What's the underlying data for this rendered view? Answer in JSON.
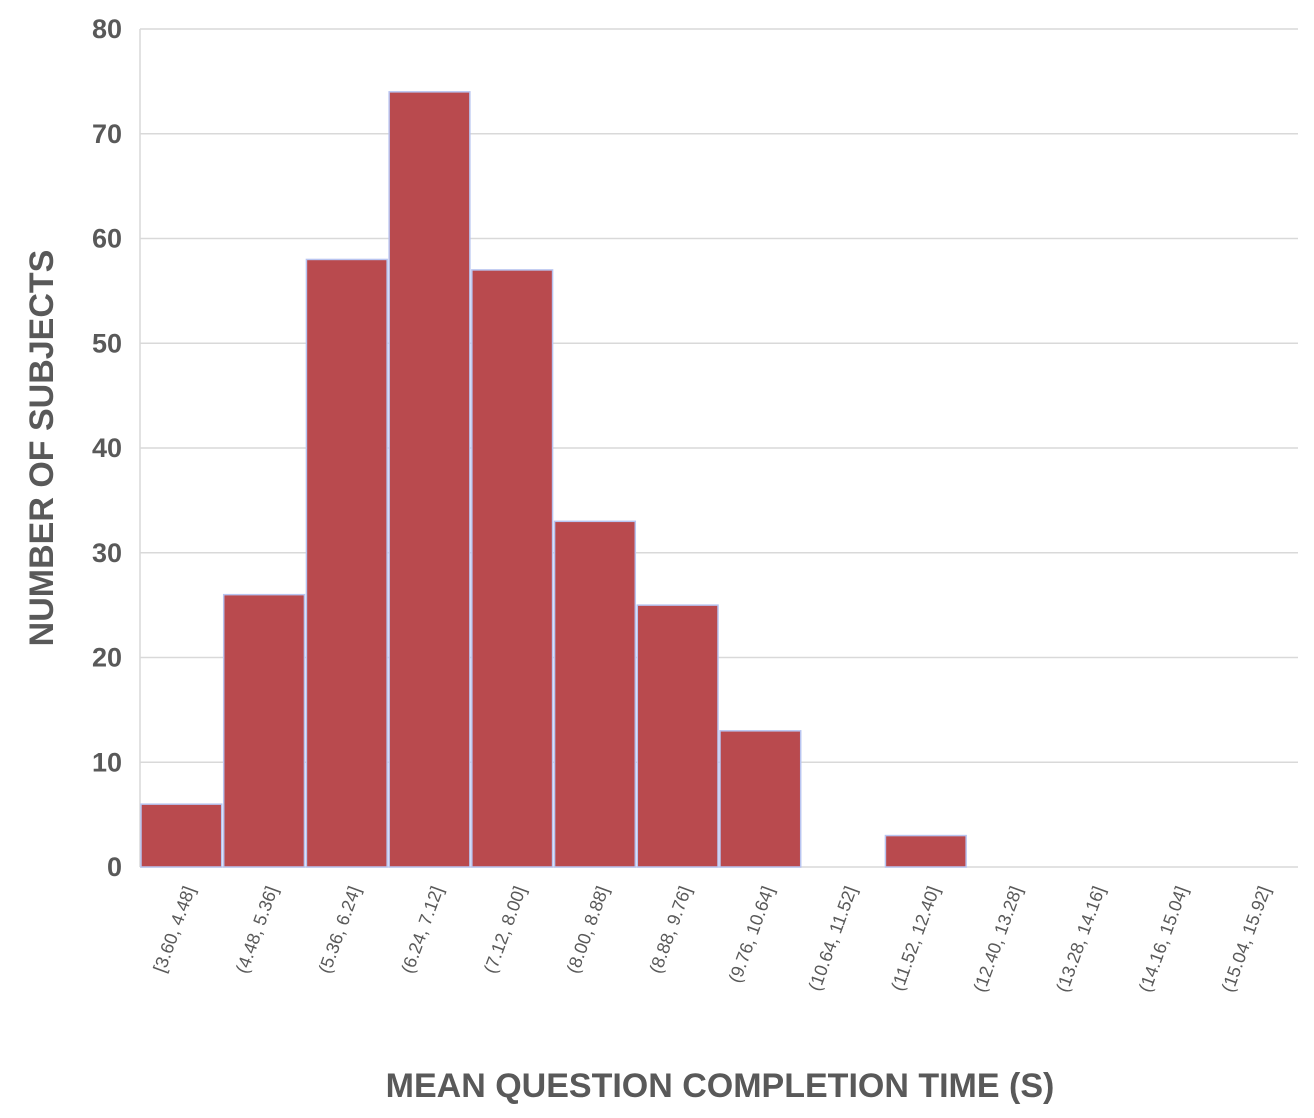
{
  "chart_data": {
    "type": "bar",
    "title": "",
    "xlabel": "MEAN QUESTION COMPLETION TIME (S)",
    "ylabel": "NUMBER OF SUBJECTS",
    "ylim": [
      0,
      80
    ],
    "yticks": [
      0,
      10,
      20,
      30,
      40,
      50,
      60,
      70,
      80
    ],
    "grid": true,
    "legend": "none",
    "bar_color": "#b94a4e",
    "categories": [
      "[3.60, 4.48]",
      "(4.48, 5.36]",
      "(5.36, 6.24]",
      "(6.24, 7.12]",
      "(7.12, 8.00]",
      "(8.00, 8.88]",
      "(8.88, 9.76]",
      "(9.76, 10.64]",
      "(10.64, 11.52]",
      "(11.52, 12.40]",
      "(12.40, 13.28]",
      "(13.28, 14.16]",
      "(14.16, 15.04]",
      "(15.04, 15.92]"
    ],
    "values": [
      6,
      26,
      58,
      74,
      57,
      33,
      25,
      13,
      0,
      3,
      0,
      0,
      0,
      0
    ]
  }
}
